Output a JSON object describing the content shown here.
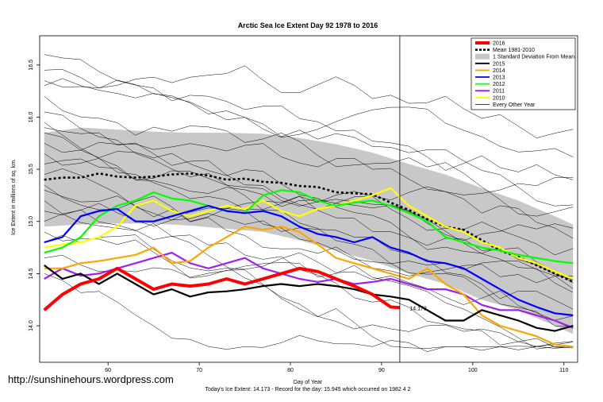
{
  "chart_data": {
    "type": "line",
    "title": "Arctic Sea Ice Extent Day 92 1978 to 2016",
    "xlabel": "Day of Year",
    "ylabel": "Ice Extent in millions of sq. km.",
    "xlim": [
      52.5,
      111.5
    ],
    "ylim": [
      13.65,
      16.78
    ],
    "x_ticks": [
      60,
      70,
      80,
      90,
      100,
      110
    ],
    "y_ticks": [
      14.0,
      14.5,
      15.0,
      15.5,
      16.0,
      16.5
    ],
    "x_ticks_labels": [
      "60",
      "70",
      "80",
      "90",
      "100",
      "110"
    ],
    "y_ticks_labels": [
      "14.0",
      "14.5",
      "15.0",
      "15.5",
      "16.0",
      "16.5"
    ],
    "vline_day": 92,
    "grid": false,
    "legend_position": "top-right",
    "legend": [
      {
        "label": "2016",
        "color": "#ff0000",
        "style": "thick"
      },
      {
        "label": "Mean 1981-2010",
        "color": "#000000",
        "style": "dashed"
      },
      {
        "label": "1 Standard Deviation From Mean",
        "color": "#c8c8c8",
        "style": "box"
      },
      {
        "label": "2015",
        "color": "#000000",
        "style": "line"
      },
      {
        "label": "2014",
        "color": "#ffa500",
        "style": "line"
      },
      {
        "label": "2013",
        "color": "#0000ff",
        "style": "line"
      },
      {
        "label": "2012",
        "color": "#00ff00",
        "style": "line"
      },
      {
        "label": "2011",
        "color": "#a020f0",
        "style": "line"
      },
      {
        "label": "2010",
        "color": "#ffff00",
        "style": "line"
      },
      {
        "label": "Every Other Year",
        "color": "#000000",
        "style": "thin"
      }
    ],
    "annotation": {
      "day": 93,
      "value": 14.173,
      "text": "14.173",
      "color": "#ff0000"
    },
    "band_x": [
      53,
      57,
      61,
      65,
      69,
      73,
      77,
      81,
      85,
      89,
      93,
      97,
      101,
      105,
      109,
      111
    ],
    "band_upper": [
      15.85,
      15.9,
      15.88,
      15.86,
      15.85,
      15.85,
      15.84,
      15.8,
      15.74,
      15.66,
      15.55,
      15.45,
      15.32,
      15.2,
      15.05,
      14.97
    ],
    "band_lower": [
      14.95,
      14.97,
      14.98,
      14.98,
      14.96,
      14.93,
      14.9,
      14.82,
      14.72,
      14.62,
      14.5,
      14.4,
      14.25,
      14.15,
      14.0,
      13.92
    ],
    "series": [
      {
        "name": "Mean 1981-2010",
        "color": "#000000",
        "dash": true,
        "x": [
          53,
          55,
          57,
          59,
          61,
          63,
          65,
          67,
          69,
          71,
          73,
          75,
          77,
          79,
          81,
          83,
          85,
          87,
          89,
          91,
          93,
          95,
          97,
          99,
          101,
          103,
          105,
          107,
          109,
          111
        ],
        "y": [
          15.4,
          15.42,
          15.42,
          15.46,
          15.43,
          15.42,
          15.43,
          15.45,
          15.46,
          15.44,
          15.4,
          15.41,
          15.38,
          15.37,
          15.34,
          15.33,
          15.28,
          15.27,
          15.26,
          15.18,
          15.11,
          15.02,
          14.95,
          14.92,
          14.82,
          14.72,
          14.66,
          14.58,
          14.5,
          14.42
        ]
      },
      {
        "name": "2010",
        "color": "#ffff00",
        "x": [
          53,
          55,
          57,
          59,
          61,
          63,
          65,
          67,
          69,
          71,
          73,
          75,
          77,
          79,
          81,
          83,
          85,
          87,
          89,
          91,
          93,
          95,
          97,
          99,
          101,
          103,
          105,
          107,
          109,
          111
        ],
        "y": [
          14.75,
          14.78,
          14.8,
          14.85,
          14.95,
          15.15,
          15.2,
          15.1,
          15.05,
          15.1,
          15.15,
          15.12,
          15.2,
          15.1,
          15.05,
          15.12,
          15.15,
          15.2,
          15.25,
          15.32,
          15.15,
          15.05,
          14.95,
          14.9,
          14.8,
          14.75,
          14.65,
          14.6,
          14.52,
          14.45
        ]
      },
      {
        "name": "2011",
        "color": "#a020f0",
        "x": [
          53,
          55,
          57,
          59,
          61,
          63,
          65,
          67,
          69,
          71,
          73,
          75,
          77,
          79,
          81,
          83,
          85,
          87,
          89,
          91,
          93,
          95,
          97,
          99,
          101,
          103,
          105,
          107,
          109,
          111
        ],
        "y": [
          14.45,
          14.55,
          14.48,
          14.5,
          14.55,
          14.6,
          14.65,
          14.7,
          14.6,
          14.55,
          14.6,
          14.65,
          14.55,
          14.5,
          14.45,
          14.42,
          14.45,
          14.4,
          14.42,
          14.45,
          14.4,
          14.35,
          14.35,
          14.3,
          14.2,
          14.15,
          14.15,
          14.1,
          14.05,
          13.98
        ]
      },
      {
        "name": "2012",
        "color": "#00ff00",
        "x": [
          53,
          55,
          57,
          59,
          61,
          63,
          65,
          67,
          69,
          71,
          73,
          75,
          77,
          79,
          81,
          83,
          85,
          87,
          89,
          91,
          93,
          95,
          97,
          99,
          101,
          103,
          105,
          107,
          109,
          111
        ],
        "y": [
          14.7,
          14.75,
          14.85,
          15.05,
          15.15,
          15.2,
          15.28,
          15.22,
          15.2,
          15.15,
          15.1,
          15.08,
          15.25,
          15.3,
          15.28,
          15.2,
          15.15,
          15.18,
          15.2,
          15.15,
          15.08,
          15.0,
          14.85,
          14.8,
          14.75,
          14.72,
          14.68,
          14.65,
          14.62,
          14.6
        ]
      },
      {
        "name": "2013",
        "color": "#0000ff",
        "x": [
          53,
          55,
          57,
          59,
          61,
          63,
          65,
          67,
          69,
          71,
          73,
          75,
          77,
          79,
          81,
          83,
          85,
          87,
          89,
          91,
          93,
          95,
          97,
          99,
          101,
          103,
          105,
          107,
          109,
          111
        ],
        "y": [
          14.8,
          14.85,
          15.05,
          15.1,
          15.12,
          15.0,
          15.0,
          15.05,
          15.1,
          15.15,
          15.1,
          15.08,
          15.1,
          15.05,
          14.95,
          14.88,
          14.85,
          14.8,
          14.85,
          14.75,
          14.7,
          14.62,
          14.6,
          14.55,
          14.45,
          14.35,
          14.25,
          14.18,
          14.12,
          14.1
        ]
      },
      {
        "name": "2014",
        "color": "#ffa500",
        "x": [
          53,
          55,
          57,
          59,
          61,
          63,
          65,
          67,
          69,
          71,
          73,
          75,
          77,
          79,
          81,
          83,
          85,
          87,
          89,
          91,
          93,
          95,
          97,
          99,
          101,
          103,
          105,
          107,
          109,
          111
        ],
        "y": [
          14.55,
          14.55,
          14.6,
          14.62,
          14.65,
          14.68,
          14.75,
          14.6,
          14.62,
          14.75,
          14.85,
          14.95,
          14.92,
          14.95,
          14.9,
          14.78,
          14.65,
          14.6,
          14.55,
          14.5,
          14.45,
          14.55,
          14.4,
          14.3,
          14.1,
          14.0,
          13.95,
          13.9,
          13.82,
          13.8
        ]
      },
      {
        "name": "2015",
        "color": "#000000",
        "x": [
          53,
          55,
          57,
          59,
          61,
          63,
          65,
          67,
          69,
          71,
          73,
          75,
          77,
          79,
          81,
          83,
          85,
          87,
          89,
          91,
          93,
          95,
          97,
          99,
          101,
          103,
          105,
          107,
          109,
          111
        ],
        "y": [
          14.58,
          14.45,
          14.5,
          14.4,
          14.5,
          14.4,
          14.3,
          14.35,
          14.28,
          14.32,
          14.33,
          14.35,
          14.38,
          14.4,
          14.38,
          14.4,
          14.38,
          14.35,
          14.3,
          14.28,
          14.25,
          14.15,
          14.05,
          14.05,
          14.15,
          14.1,
          14.05,
          13.98,
          13.95,
          14.0
        ]
      },
      {
        "name": "2016",
        "color": "#ff0000",
        "thick": true,
        "x": [
          53,
          55,
          57,
          59,
          61,
          63,
          65,
          67,
          69,
          71,
          73,
          75,
          77,
          79,
          81,
          83,
          85,
          87,
          89,
          91,
          92
        ],
        "y": [
          14.15,
          14.3,
          14.4,
          14.45,
          14.55,
          14.45,
          14.35,
          14.4,
          14.38,
          14.4,
          14.45,
          14.4,
          14.45,
          14.5,
          14.55,
          14.52,
          14.45,
          14.38,
          14.3,
          14.18,
          14.173
        ]
      }
    ]
  },
  "watermark": "http://sunshinehours.wordpress.com",
  "footer": "Today's Ice Extent: 14.173  - Record for the day: 15.945 which occurred on 1982 4 2"
}
